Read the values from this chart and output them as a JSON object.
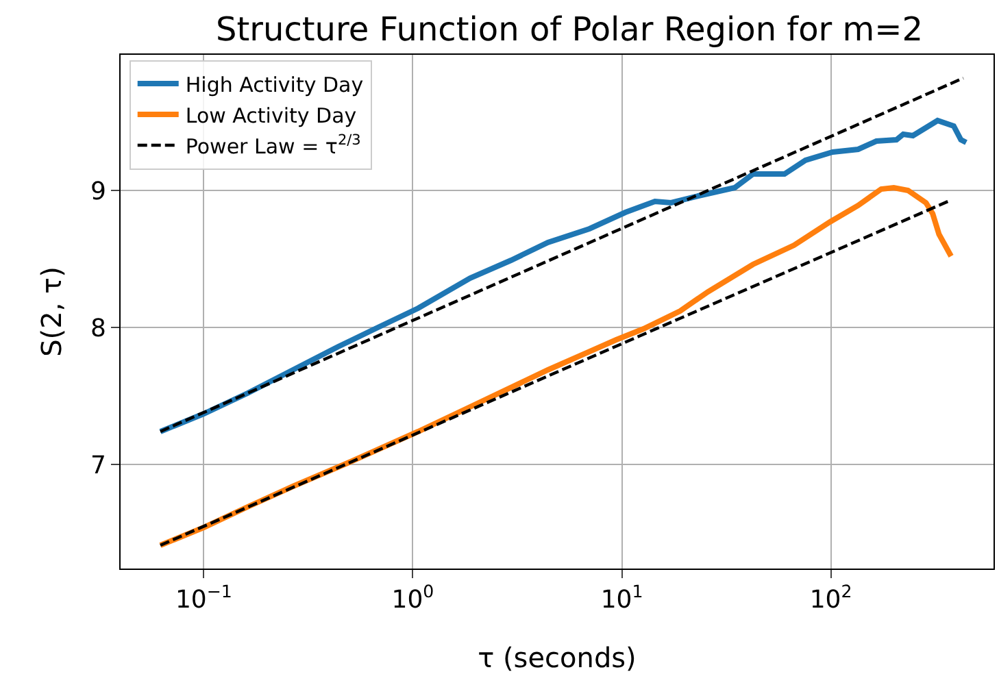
{
  "chart_data": {
    "type": "line",
    "title": "Structure Function of Polar Region for m=2",
    "xlabel": "τ (seconds)",
    "ylabel": "S(2, τ)",
    "log": "x",
    "grid": true,
    "legend": "top left",
    "line_style": "solid",
    "marker": "none",
    "xlim": [
      0.04,
      600
    ],
    "xticks": [
      {
        "value": 0.1,
        "label": "10$^{−1}$"
      },
      {
        "value": 1,
        "label": "10$^{0}$"
      },
      {
        "value": 10,
        "label": "10$^{1}$"
      },
      {
        "value": 100,
        "label": "10$^{2}$"
      }
    ],
    "ylim": [
      6.24,
      9.99
    ],
    "yticks": [
      7,
      8,
      9
    ],
    "series": [
      {
        "name": "High Activity Day",
        "color": "#1f77b4",
        "x": [
          0.062,
          0.1,
          0.162,
          0.267,
          0.44,
          0.66,
          1.06,
          1.88,
          2.95,
          4.43,
          7.0,
          10.4,
          14.4,
          17.2,
          23.2,
          34.7,
          42.4,
          60,
          75.6,
          102,
          135,
          165,
          206,
          222,
          247,
          324,
          387,
          419,
          444
        ],
        "values": [
          7.24,
          7.37,
          7.52,
          7.69,
          7.86,
          7.99,
          8.14,
          8.36,
          8.49,
          8.62,
          8.72,
          8.84,
          8.92,
          8.91,
          8.96,
          9.02,
          9.12,
          9.12,
          9.22,
          9.28,
          9.3,
          9.36,
          9.37,
          9.41,
          9.4,
          9.51,
          9.47,
          9.37,
          9.35
        ]
      },
      {
        "name": "Low Activity Day",
        "color": "#ff7f0e",
        "x": [
          0.062,
          0.1,
          0.162,
          0.267,
          0.487,
          1.06,
          1.88,
          4.43,
          9.4,
          12.7,
          19,
          25.8,
          42.4,
          66.6,
          99,
          135,
          174,
          200,
          234,
          285,
          307,
          329,
          376
        ],
        "values": [
          6.41,
          6.54,
          6.69,
          6.84,
          7.01,
          7.24,
          7.42,
          7.69,
          7.91,
          7.99,
          8.12,
          8.26,
          8.46,
          8.6,
          8.77,
          8.89,
          9.01,
          9.02,
          9.0,
          8.91,
          8.83,
          8.68,
          8.52
        ]
      },
      {
        "name": "Power Law = τ$^{2/3}$",
        "type": "line",
        "line_style": "dashed",
        "color": "#000000",
        "x": [
          0.062,
          430
        ],
        "values": [
          7.24,
          9.82
        ]
      },
      {
        "type": "line",
        "line_style": "dashed",
        "color": "#000000",
        "x": [
          0.062,
          376
        ],
        "values": [
          6.41,
          8.93
        ]
      }
    ]
  }
}
